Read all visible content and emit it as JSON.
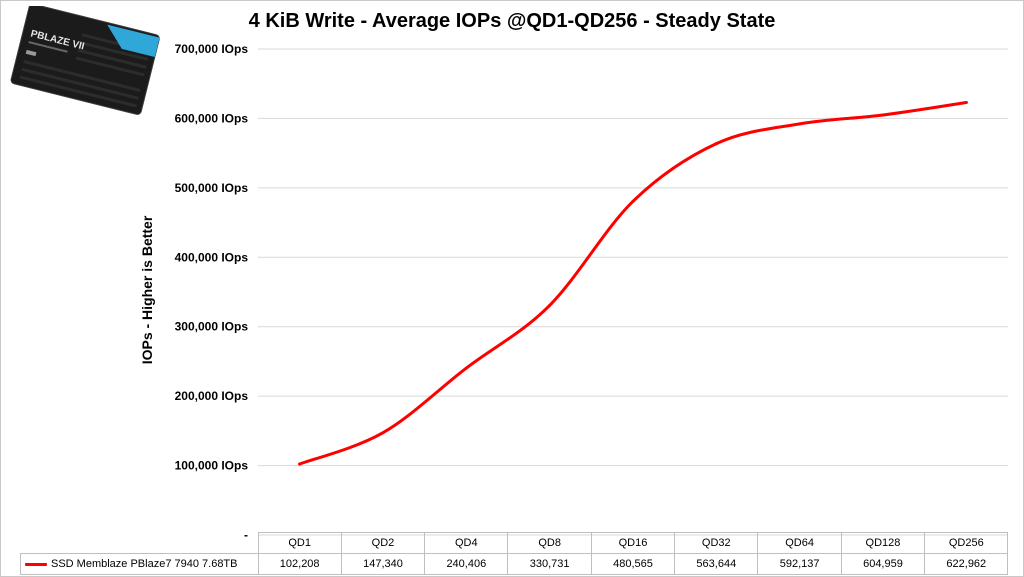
{
  "chart_data": {
    "type": "line",
    "title": "4 KiB Write - Average IOPs @QD1-QD256 - Steady State",
    "ylabel": "IOPs  - Higher is Better",
    "categories": [
      "QD1",
      "QD2",
      "QD4",
      "QD8",
      "QD16",
      "QD32",
      "QD64",
      "QD128",
      "QD256"
    ],
    "series": [
      {
        "name": "SSD Memblaze PBlaze7 7940 7.68TB",
        "color": "#ff0000",
        "values": [
          102208,
          147340,
          240406,
          330731,
          480565,
          563644,
          592137,
          604959,
          622962
        ]
      }
    ],
    "value_labels": [
      "102,208",
      "147,340",
      "240,406",
      "330,731",
      "480,565",
      "563,644",
      "592,137",
      "604,959",
      "622,962"
    ],
    "ylim": [
      0,
      700000
    ],
    "y_tick_labels": [
      "-",
      "100,000 IOps",
      "200,000 IOps",
      "300,000 IOps",
      "400,000 IOps",
      "500,000 IOps",
      "600,000 IOps",
      "700,000 IOps"
    ],
    "grid": true,
    "legend": "data-table"
  },
  "product_image": {
    "name": "ssd-drive-image",
    "label_text": "PBLAZE VII",
    "accent": "#2fa7d8"
  }
}
